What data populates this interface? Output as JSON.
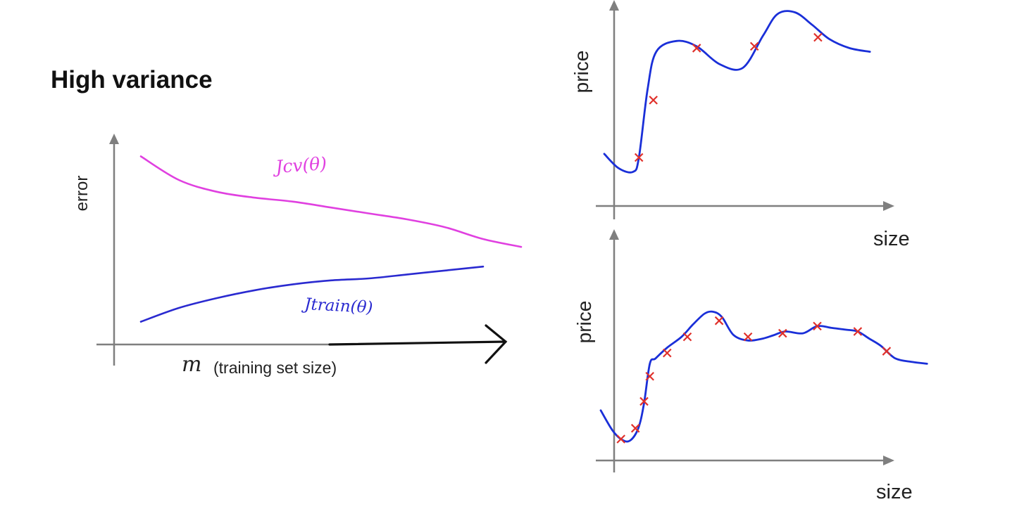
{
  "title": "High variance",
  "colors": {
    "cv": "#e040e0",
    "train": "#2a2ad0",
    "fit": "#1a2fd8",
    "point": "#e0302a",
    "axis": "#7f7f7f"
  },
  "chart_data": [
    {
      "type": "line",
      "ylabel": "error",
      "xlabel_symbol": "m",
      "xlabel": "(training set size)",
      "series": [
        {
          "name": "Jcv(θ)",
          "x": [
            0,
            10,
            20,
            30,
            40,
            50,
            60,
            70,
            80,
            90,
            100
          ],
          "y": [
            92,
            80,
            74,
            71,
            69,
            66,
            63,
            60,
            56,
            50,
            46
          ]
        },
        {
          "name": "Jtrain(θ)",
          "x": [
            0,
            10,
            20,
            30,
            40,
            50,
            60,
            70,
            80,
            90
          ],
          "y": [
            8,
            15,
            20,
            24,
            27,
            29,
            30,
            32,
            34,
            36
          ]
        }
      ]
    },
    {
      "type": "scatter",
      "xlabel": "size",
      "ylabel": "price",
      "points": [
        [
          12,
          20
        ],
        [
          17,
          52
        ],
        [
          32,
          81
        ],
        [
          52,
          82
        ],
        [
          74,
          87
        ]
      ],
      "fit": {
        "x": [
          0,
          5,
          10,
          12,
          15,
          18,
          25,
          32,
          40,
          48,
          55,
          60,
          66,
          72,
          78,
          85,
          92
        ],
        "y": [
          22,
          14,
          12,
          20,
          58,
          79,
          85,
          82,
          72,
          70,
          88,
          100,
          101,
          94,
          86,
          81,
          79
        ]
      }
    },
    {
      "type": "scatter",
      "xlabel": "size",
      "ylabel": "price",
      "points": [
        [
          7,
          10
        ],
        [
          12,
          16
        ],
        [
          15,
          31
        ],
        [
          17,
          45
        ],
        [
          23,
          58
        ],
        [
          30,
          67
        ],
        [
          41,
          76
        ],
        [
          51,
          67
        ],
        [
          63,
          69
        ],
        [
          75,
          73
        ],
        [
          89,
          70
        ],
        [
          99,
          59
        ]
      ],
      "fit": {
        "x": [
          0,
          4,
          7,
          10,
          13,
          15,
          17,
          19,
          23,
          28,
          32,
          36,
          39,
          42,
          46,
          51,
          56,
          60,
          64,
          70,
          75,
          80,
          85,
          89,
          93,
          97,
          102,
          108,
          113
        ],
        "y": [
          26,
          15,
          10,
          9,
          16,
          30,
          52,
          55,
          61,
          67,
          74,
          80,
          81,
          78,
          68,
          65,
          66,
          68,
          70,
          69,
          73,
          72,
          71,
          70,
          66,
          62,
          55,
          53,
          52
        ]
      }
    }
  ]
}
